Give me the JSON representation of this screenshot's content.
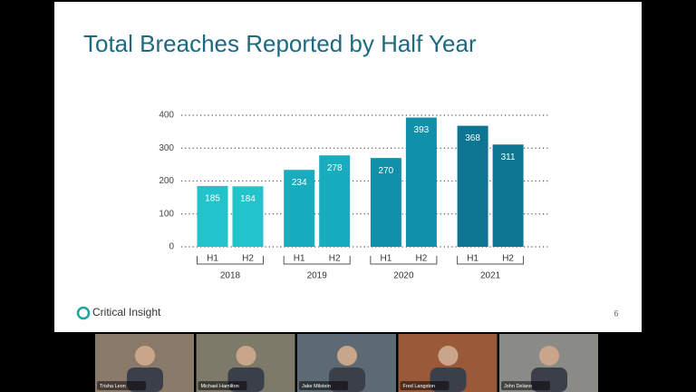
{
  "chart_data": {
    "type": "bar",
    "title": "Total Breaches Reported by Half Year",
    "categories": [
      "H1",
      "H2",
      "H1",
      "H2",
      "H1",
      "H2",
      "H1",
      "H2"
    ],
    "groups": [
      "2018",
      "2019",
      "2020",
      "2021"
    ],
    "values": [
      185,
      184,
      234,
      278,
      270,
      393,
      368,
      311
    ],
    "colors": [
      "#22c3cb",
      "#22c3cb",
      "#17adbf",
      "#17adbf",
      "#1190a9",
      "#1190a9",
      "#0d7591",
      "#0d7591"
    ],
    "ylim": [
      0,
      400
    ],
    "yticks": [
      0,
      100,
      200,
      300,
      400
    ],
    "grid": true
  },
  "slide": {
    "logo": "Critical Insight",
    "page_number": "6"
  },
  "participants": [
    "Trisha Leon",
    "Michael Hamilton",
    "Jake Milstein",
    "Fred Langston",
    "John Delano"
  ]
}
